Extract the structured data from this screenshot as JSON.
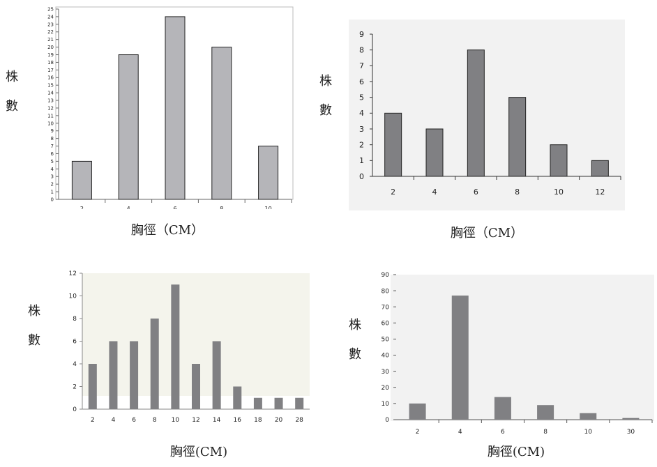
{
  "labels": {
    "y_char1": "株",
    "y_char2": "數",
    "x_label_spaced": "胸徑（CM）",
    "x_label_tight": "胸徑(CM)"
  },
  "colors": {
    "bar_light": "#b5b5b9",
    "bar_dark": "#808083",
    "panel_bg_gray": "#f2f2f2",
    "panel_bg_cream": "#f4f4ec"
  },
  "chart_data": [
    {
      "type": "bar",
      "categories": [
        "2",
        "4",
        "6",
        "8",
        "10"
      ],
      "values": [
        5,
        19,
        24,
        20,
        7
      ],
      "xlabel": "胸徑（CM）",
      "ylabel": "株數",
      "ylim": [
        0,
        25
      ],
      "ytick_step": 1,
      "grid": false
    },
    {
      "type": "bar",
      "categories": [
        "2",
        "4",
        "6",
        "8",
        "10",
        "12"
      ],
      "values": [
        4,
        3,
        8,
        5,
        2,
        1
      ],
      "xlabel": "胸徑（CM）",
      "ylabel": "株數",
      "ylim": [
        0,
        9
      ],
      "ytick_step": 1,
      "grid": false
    },
    {
      "type": "bar",
      "categories": [
        "2",
        "4",
        "6",
        "8",
        "10",
        "12",
        "14",
        "16",
        "18",
        "20",
        "28"
      ],
      "values": [
        4,
        6,
        6,
        8,
        11,
        4,
        6,
        2,
        1,
        1,
        1
      ],
      "xlabel": "胸徑(CM)",
      "ylabel": "株數",
      "ylim": [
        0,
        12
      ],
      "ytick_step": 2,
      "grid": false
    },
    {
      "type": "bar",
      "categories": [
        "2",
        "4",
        "6",
        "8",
        "10",
        "30"
      ],
      "values": [
        10,
        77,
        14,
        9,
        4,
        1
      ],
      "xlabel": "胸徑(CM)",
      "ylabel": "株數",
      "ylim": [
        0,
        90
      ],
      "ytick_step": 10,
      "grid": false
    }
  ]
}
